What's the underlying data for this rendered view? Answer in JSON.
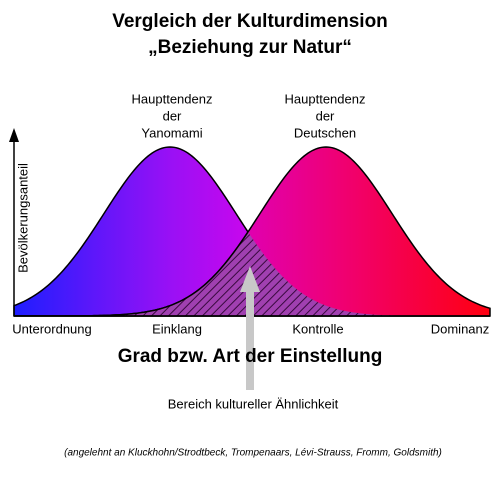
{
  "title": {
    "line1": "Vergleich der Kulturdimension",
    "line2": "„Beziehung zur Natur“"
  },
  "peaks": [
    {
      "lines": [
        "Haupttendenz",
        "der",
        "Yanomami"
      ]
    },
    {
      "lines": [
        "Haupttendenz",
        "der",
        "Deutschen"
      ]
    }
  ],
  "y_axis_label": "Bevölkerungsanteil",
  "x_labels": [
    "Unterordnung",
    "Einklang",
    "Kontrolle",
    "Dominanz"
  ],
  "x_axis_title": "Grad bzw. Art der Einstellung",
  "overlap_label": "Bereich kultureller Ähnlichkeit",
  "footnote": "(angelehnt an Kluckhohn/Strodtbeck, Trompenaars, Lévi-Strauss, Fromm, Goldsmith)"
}
